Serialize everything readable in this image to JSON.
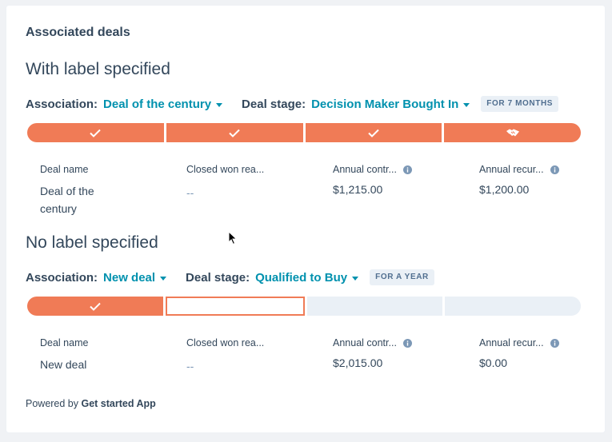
{
  "card": {
    "title": "Associated deals"
  },
  "sections": [
    {
      "title": "With label specified",
      "association_label": "Association:",
      "association_value": "Deal of the century",
      "stage_label": "Deal stage:",
      "stage_value": "Decision Maker Bought In",
      "badge": "FOR 7 MONTHS",
      "pipeline": [
        {
          "state": "done",
          "icon": "check-icon"
        },
        {
          "state": "done",
          "icon": "check-icon"
        },
        {
          "state": "done",
          "icon": "check-icon"
        },
        {
          "state": "done",
          "icon": "handshake-icon"
        }
      ],
      "columns": [
        {
          "header": "Deal name",
          "value": "Deal of the century",
          "info": false
        },
        {
          "header": "Closed won rea...",
          "value": "--",
          "info": false
        },
        {
          "header": "Annual contr...",
          "value": "$1,215.00",
          "info": true
        },
        {
          "header": "Annual recur...",
          "value": "$1,200.00",
          "info": true
        }
      ]
    },
    {
      "title": "No label specified",
      "association_label": "Association:",
      "association_value": "New deal",
      "stage_label": "Deal stage:",
      "stage_value": "Qualified to Buy",
      "badge": "FOR A YEAR",
      "pipeline": [
        {
          "state": "done",
          "icon": "check-icon"
        },
        {
          "state": "current",
          "icon": ""
        },
        {
          "state": "todo",
          "icon": ""
        },
        {
          "state": "todo",
          "icon": ""
        }
      ],
      "columns": [
        {
          "header": "Deal name",
          "value": "New deal",
          "info": false
        },
        {
          "header": "Closed won rea...",
          "value": "--",
          "info": false
        },
        {
          "header": "Annual contr...",
          "value": "$2,015.00",
          "info": true
        },
        {
          "header": "Annual recur...",
          "value": "$0.00",
          "info": true
        }
      ]
    }
  ],
  "footer": {
    "prefix": "Powered by",
    "app_name": "Get started App"
  },
  "colors": {
    "accent": "#f07b56",
    "link": "#0091ae",
    "text": "#33475b",
    "badge_bg": "#eaf0f6"
  }
}
